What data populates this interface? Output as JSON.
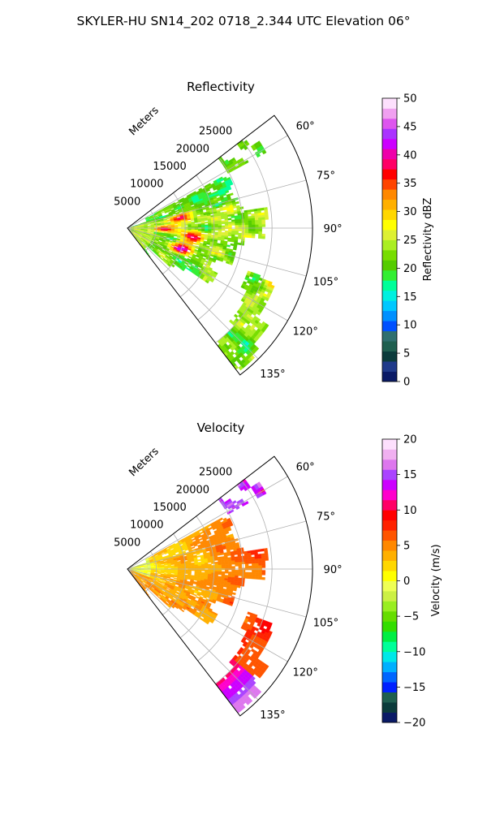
{
  "suptitle": "SKYLER-HU  SN14_202  0718_2.344 UTC Elevation 06°",
  "panels": [
    {
      "title": "Reflectivity",
      "range_unit_label": "Meters",
      "radial_ticks": [
        "5000",
        "10000",
        "15000",
        "20000",
        "25000"
      ],
      "azimuth_ticks": [
        "60°",
        "75°",
        "90°",
        "105°",
        "120°",
        "135°"
      ],
      "colorbar": {
        "label": "Reflectivity dBZ",
        "ticks": [
          "0",
          "5",
          "10",
          "15",
          "20",
          "25",
          "30",
          "35",
          "40",
          "45",
          "50"
        ]
      }
    },
    {
      "title": "Velocity",
      "range_unit_label": "Meters",
      "radial_ticks": [
        "5000",
        "10000",
        "15000",
        "20000",
        "25000"
      ],
      "azimuth_ticks": [
        "60°",
        "75°",
        "90°",
        "105°",
        "120°",
        "135°"
      ],
      "colorbar": {
        "label": "Velocity (m/s)",
        "ticks": [
          "−20",
          "−15",
          "−10",
          "−5",
          "0",
          "5",
          "10",
          "15",
          "20"
        ]
      }
    }
  ],
  "chart_data": [
    {
      "type": "heatmap",
      "title": "Reflectivity",
      "projection": "polar",
      "theta_range_deg": [
        52.5,
        142.5
      ],
      "r_range_m": [
        0,
        32000
      ],
      "r_ticks": [
        5000,
        10000,
        15000,
        20000,
        25000
      ],
      "theta_ticks_deg": [
        60,
        75,
        90,
        105,
        120,
        135
      ],
      "grid": true,
      "colorbar": {
        "label": "Reflectivity dBZ",
        "range": [
          0,
          50
        ],
        "ticks": [
          0,
          5,
          10,
          15,
          20,
          25,
          30,
          35,
          40,
          45,
          50
        ],
        "colors": [
          "#0a1a66",
          "#1f3a8a",
          "#0b3b3b",
          "#1f5f4f",
          "#2f6f6f",
          "#0050ff",
          "#0090ff",
          "#00c8ff",
          "#00f0e0",
          "#00ff99",
          "#33ee33",
          "#55cc00",
          "#77dd00",
          "#aaee22",
          "#ddf033",
          "#ffff00",
          "#ffd700",
          "#ffb000",
          "#ff8800",
          "#ff4400",
          "#ff0000",
          "#ff0066",
          "#ee00aa",
          "#cc00ff",
          "#aa33ff",
          "#dd55ee",
          "#f0a0f0",
          "#fde0fd"
        ]
      }
    },
    {
      "type": "heatmap",
      "title": "Velocity",
      "projection": "polar",
      "theta_range_deg": [
        52.5,
        142.5
      ],
      "r_range_m": [
        0,
        32000
      ],
      "r_ticks": [
        5000,
        10000,
        15000,
        20000,
        25000
      ],
      "theta_ticks_deg": [
        60,
        75,
        90,
        105,
        120,
        135
      ],
      "grid": true,
      "colorbar": {
        "label": "Velocity (m/s)",
        "range": [
          -20,
          20
        ],
        "ticks": [
          -20,
          -15,
          -10,
          -5,
          0,
          5,
          10,
          15,
          20
        ],
        "colors": [
          "#0a1a66",
          "#0b3b3b",
          "#1f5f4f",
          "#0020ff",
          "#0066ff",
          "#00b0ff",
          "#00e8e8",
          "#00ff99",
          "#00ee44",
          "#33dd00",
          "#66dd00",
          "#99ee22",
          "#ccf044",
          "#eeff55",
          "#ffff00",
          "#ffd700",
          "#ffb000",
          "#ff8800",
          "#ff5500",
          "#ff2200",
          "#ff0000",
          "#ff0066",
          "#ff00cc",
          "#cc00ff",
          "#aa44ff",
          "#dd77ee",
          "#f0b0f0",
          "#fde0fd"
        ]
      }
    }
  ]
}
